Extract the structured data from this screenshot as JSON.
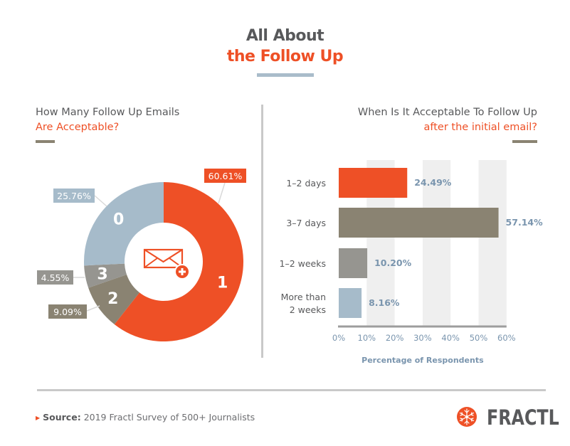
{
  "title": {
    "line1": "All About",
    "line2": "the Follow Up"
  },
  "left_panel": {
    "heading_line1": "How Many Follow Up Emails",
    "heading_line2": "Are Acceptable?"
  },
  "right_panel": {
    "heading_line1": "When Is It Acceptable To Follow Up",
    "heading_line2": "after the initial email?"
  },
  "colors": {
    "orange": "#ee5026",
    "taupe": "#8a8372",
    "gray": "#969590",
    "blue_gray": "#a6bbca",
    "stripe": "#efefef",
    "text_dark": "#58595b",
    "value_blue": "#7a95ae"
  },
  "chart_data": [
    {
      "type": "pie",
      "variant": "donut",
      "title": "How Many Follow Up Emails Are Acceptable?",
      "center_icon": "envelope-plus-icon",
      "slices": [
        {
          "name": "1",
          "value": 60.61,
          "label": "60.61%",
          "color": "#ee5026"
        },
        {
          "name": "2",
          "value": 9.09,
          "label": "9.09%",
          "color": "#8a8372"
        },
        {
          "name": "3",
          "value": 4.55,
          "label": "4.55%",
          "color": "#969590"
        },
        {
          "name": "0",
          "value": 25.76,
          "label": "25.76%",
          "color": "#a6bbca"
        }
      ]
    },
    {
      "type": "bar",
      "orientation": "horizontal",
      "title": "When Is It Acceptable To Follow Up after the initial email?",
      "categories": [
        {
          "label_lines": [
            "1–2 days"
          ]
        },
        {
          "label_lines": [
            "3–7 days"
          ]
        },
        {
          "label_lines": [
            "1–2 weeks"
          ]
        },
        {
          "label_lines": [
            "More than",
            "2 weeks"
          ]
        }
      ],
      "values": [
        24.49,
        57.14,
        10.2,
        8.16
      ],
      "value_labels": [
        "24.49%",
        "57.14%",
        "10.20%",
        "8.16%"
      ],
      "bar_colors": [
        "#ee5026",
        "#8a8372",
        "#969590",
        "#a6bbca"
      ],
      "xlabel": "Percentage of Respondents",
      "xlim": [
        0,
        60
      ],
      "xticks": [
        0,
        10,
        20,
        30,
        40,
        50,
        60
      ],
      "xtick_labels": [
        "0%",
        "10%",
        "20%",
        "30%",
        "40%",
        "50%",
        "60%"
      ],
      "grid": "alternating vertical bands"
    }
  ],
  "footer": {
    "source_label": "Source:",
    "source_text": "2019 Fractl Survey of 500+ Journalists",
    "brand": "FRACTL"
  }
}
